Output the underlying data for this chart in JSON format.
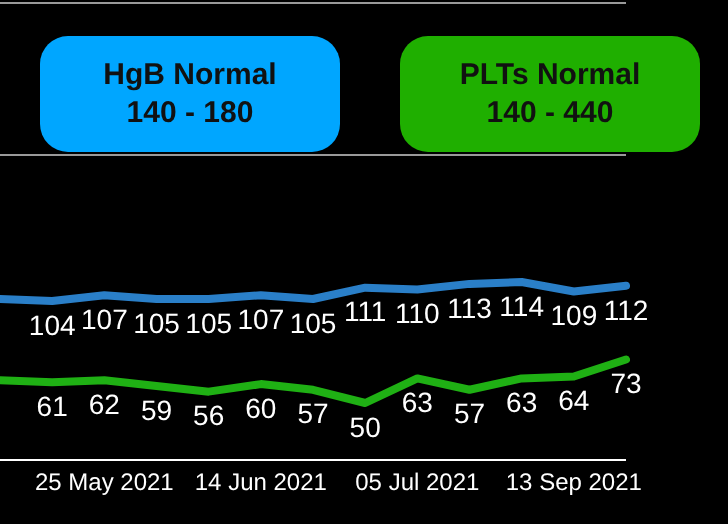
{
  "chart_data": {
    "type": "line",
    "categories": [
      null,
      null,
      "25 May 2021",
      null,
      null,
      "14 Jun 2021",
      null,
      null,
      "05 Jul 2021",
      null,
      null,
      "13 Sep 2021",
      null
    ],
    "series": [
      {
        "color": "#2a7fc8",
        "values": [
          105,
          104,
          107,
          105,
          105,
          107,
          105,
          111,
          110,
          113,
          114,
          109,
          112
        ],
        "value_labels": [
          null,
          "104",
          "107",
          "105",
          "105",
          "107",
          "105",
          "111",
          "110",
          "113",
          "114",
          "109",
          "112"
        ]
      },
      {
        "color": "#1fb014",
        "values": [
          62,
          61,
          62,
          59,
          56,
          60,
          57,
          50,
          63,
          57,
          63,
          64,
          73
        ],
        "value_labels": [
          null,
          "61",
          "62",
          "59",
          "56",
          "60",
          "57",
          "50",
          "63",
          "57",
          "63",
          "64",
          "73"
        ]
      }
    ],
    "annotations": [
      "HgB Normal\n140 - 180",
      "PLTs Normal\n140 - 440"
    ],
    "legend": false,
    "marker": "none",
    "line_style": "solid"
  }
}
